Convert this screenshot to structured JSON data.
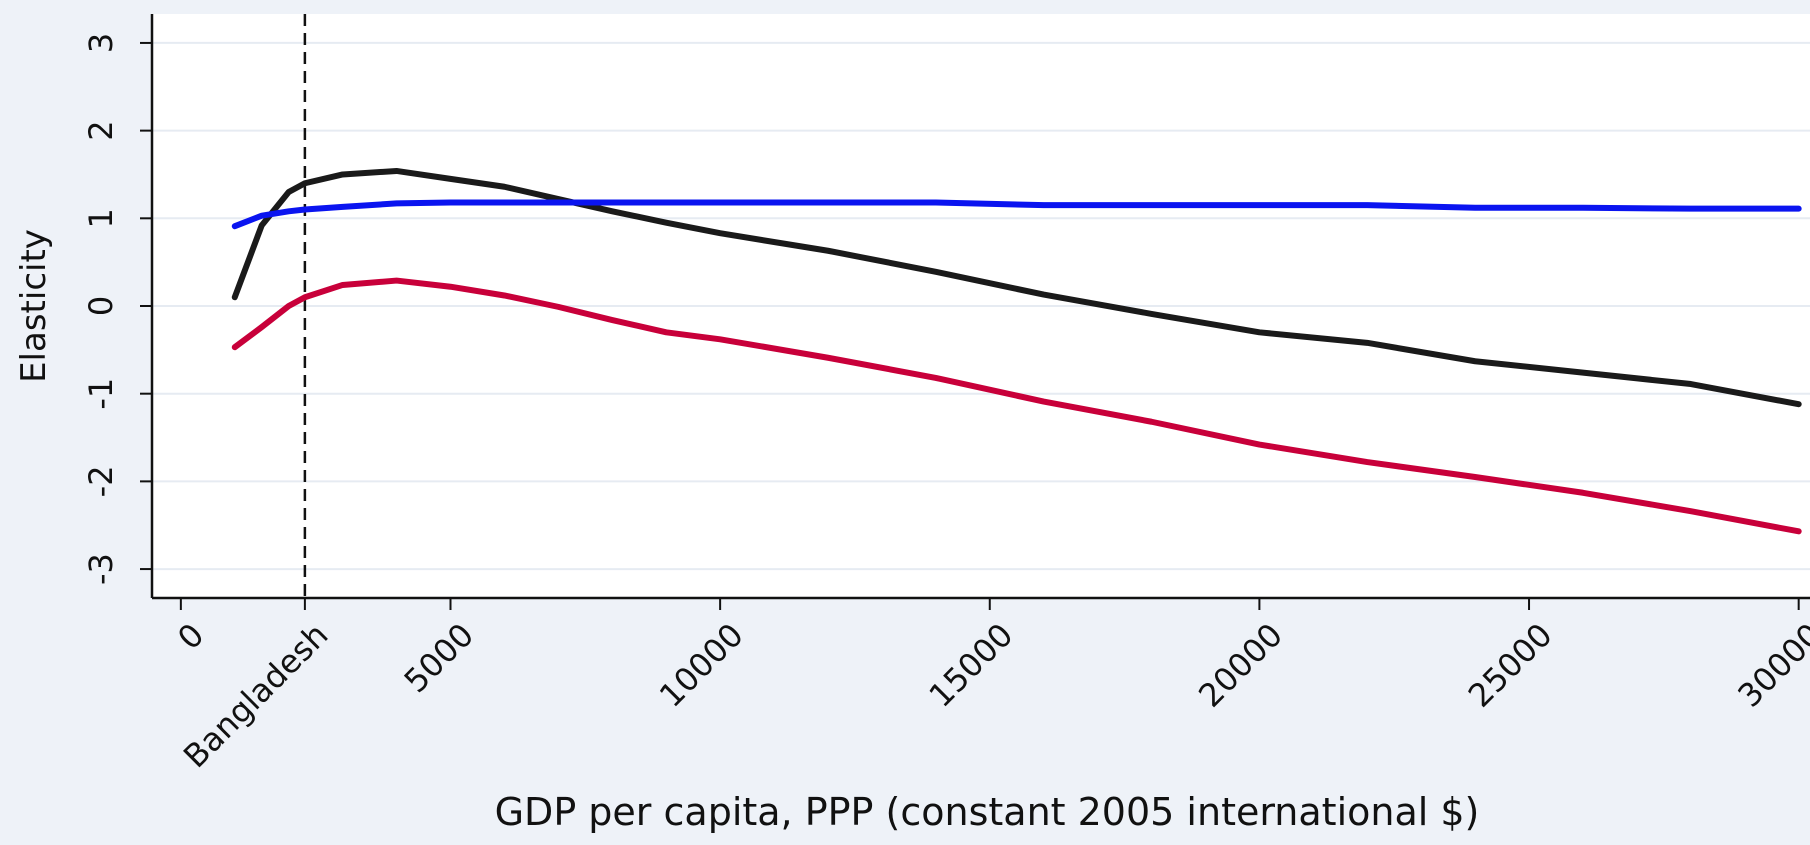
{
  "chart_data": {
    "type": "line",
    "xlabel": "GDP per capita, PPP (constant 2005 international $)",
    "ylabel": "Elasticity",
    "x": [
      1000,
      1500,
      2000,
      2300,
      3000,
      4000,
      5000,
      6000,
      7000,
      8000,
      9000,
      10000,
      12000,
      14000,
      16000,
      18000,
      20000,
      22000,
      24000,
      26000,
      28000,
      30000
    ],
    "series": [
      {
        "color": "#1a1a1a",
        "values": [
          0.1,
          0.92,
          1.3,
          1.4,
          1.5,
          1.54,
          1.45,
          1.36,
          1.22,
          1.08,
          0.95,
          0.83,
          0.63,
          0.39,
          0.13,
          -0.09,
          -0.3,
          -0.42,
          -0.63,
          -0.76,
          -0.89,
          -1.12
        ]
      },
      {
        "color": "#0a14f0",
        "values": [
          0.91,
          1.03,
          1.08,
          1.1,
          1.13,
          1.17,
          1.18,
          1.18,
          1.18,
          1.18,
          1.18,
          1.18,
          1.18,
          1.18,
          1.15,
          1.15,
          1.15,
          1.15,
          1.12,
          1.12,
          1.11,
          1.11
        ]
      },
      {
        "color": "#c8003a",
        "values": [
          -0.47,
          -0.24,
          0,
          0.1,
          0.24,
          0.29,
          0.22,
          0.12,
          -0.01,
          -0.16,
          -0.3,
          -0.38,
          -0.59,
          -0.82,
          -1.09,
          -1.32,
          -1.58,
          -1.78,
          -1.95,
          -2.13,
          -2.34,
          -2.57
        ]
      }
    ],
    "xlim": [
      -535,
      30210
    ],
    "ylim": [
      -3.33,
      3.33
    ],
    "xticks": [
      0,
      {
        "value": 2300,
        "label": "Bangladesh"
      },
      5000,
      10000,
      15000,
      20000,
      25000,
      30000
    ],
    "yticks": [
      -3,
      -2,
      -1,
      0,
      1,
      2,
      3
    ],
    "reference_line_x": 2300,
    "grid": true
  }
}
